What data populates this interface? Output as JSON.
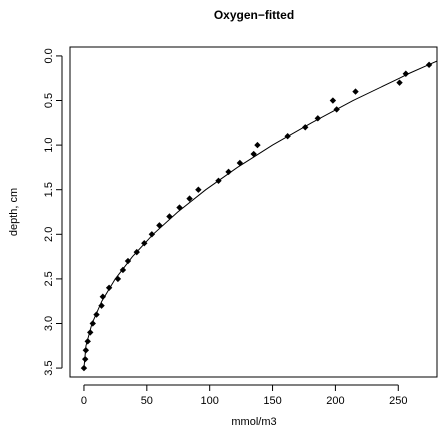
{
  "chart_data": {
    "type": "scatter",
    "title": "Oxygen−fitted",
    "x_label": "mmol/m3",
    "y_label": "depth, cm",
    "xlim": [
      -11.1,
      280.8
    ],
    "ylim": [
      3.6,
      -0.1
    ],
    "y_reversed": true,
    "xticks": [
      0,
      50,
      100,
      150,
      200,
      250
    ],
    "yticks": [
      {
        "value": 0,
        "label": "0.0"
      },
      {
        "value": 0.5,
        "label": "0.5"
      },
      {
        "value": 1,
        "label": "1.0"
      },
      {
        "value": 1.5,
        "label": "1.5"
      },
      {
        "value": 2,
        "label": "2.0"
      },
      {
        "value": 2.5,
        "label": "2.5"
      },
      {
        "value": 3,
        "label": "3.0"
      },
      {
        "value": 3.5,
        "label": "3.5"
      }
    ],
    "color": "#000000",
    "points": {
      "x": [
        274.5,
        256,
        251,
        216,
        198,
        201,
        186,
        176,
        162,
        138,
        135,
        124,
        115,
        107,
        91,
        84,
        76,
        68,
        60,
        54,
        48,
        42,
        35,
        31,
        27,
        20,
        15,
        14,
        10,
        7,
        5,
        3,
        1.5,
        1,
        0
      ],
      "y": [
        0.1,
        0.2,
        0.3,
        0.4,
        0.5,
        0.6,
        0.7,
        0.8,
        0.9,
        1.0,
        1.1,
        1.2,
        1.3,
        1.4,
        1.5,
        1.6,
        1.7,
        1.8,
        1.9,
        2.0,
        2.1,
        2.2,
        2.3,
        2.4,
        2.5,
        2.6,
        2.7,
        2.8,
        2.9,
        3.0,
        3.1,
        3.2,
        3.3,
        3.4,
        3.5
      ]
    },
    "fit": {
      "x": [
        290,
        274,
        258,
        251,
        214,
        181,
        150,
        122,
        96.9,
        74.6,
        55,
        38.6,
        24.9,
        14.2,
        6.4,
        1.6,
        0
      ],
      "y": [
        0,
        0.1,
        0.2,
        0.25,
        0.5,
        0.75,
        1,
        1.25,
        1.5,
        1.75,
        2,
        2.25,
        2.5,
        2.75,
        3,
        3.25,
        3.5
      ]
    }
  }
}
